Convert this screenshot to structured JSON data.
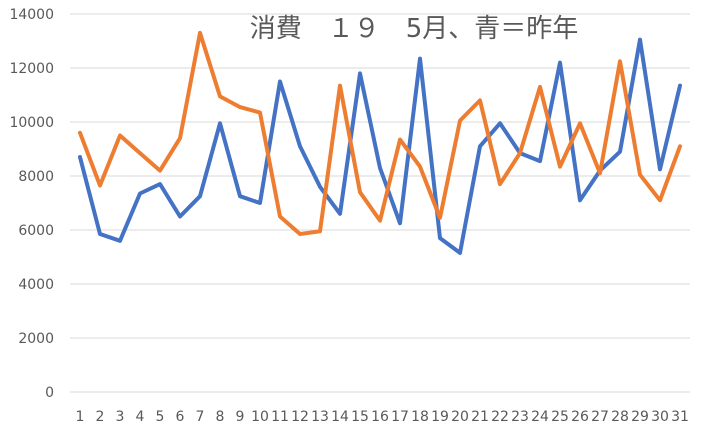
{
  "chart_data": {
    "type": "line",
    "title": "消費　１９　5月、青＝昨年",
    "xlabel": "",
    "ylabel": "",
    "x": [
      "1",
      "2",
      "3",
      "4",
      "5",
      "6",
      "7",
      "8",
      "9",
      "10",
      "11",
      "12",
      "13",
      "14",
      "15",
      "16",
      "17",
      "18",
      "19",
      "20",
      "21",
      "22",
      "23",
      "24",
      "25",
      "26",
      "27",
      "28",
      "29",
      "30",
      "31"
    ],
    "ylim": [
      0,
      14000
    ],
    "yticks": [
      "0",
      "2000",
      "4000",
      "6000",
      "8000",
      "10000",
      "12000",
      "14000"
    ],
    "grid": true,
    "legend": "none",
    "series": [
      {
        "color": "#4472c4",
        "values": [
          8700,
          5850,
          5600,
          7350,
          7700,
          6500,
          7250,
          9950,
          7250,
          7000,
          11500,
          9100,
          7600,
          6600,
          11800,
          8300,
          6250,
          12350,
          5700,
          5150,
          9100,
          9950,
          8850,
          8550,
          12200,
          7100,
          8200,
          8900,
          13050,
          8250,
          11350
        ]
      },
      {
        "color": "#ed7d31",
        "values": [
          9600,
          7650,
          9500,
          8850,
          8200,
          9400,
          13300,
          10950,
          10550,
          10350,
          6500,
          5850,
          5950,
          11350,
          7400,
          6350,
          9350,
          8350,
          6450,
          10050,
          10800,
          7700,
          8850,
          11300,
          8350,
          9950,
          8100,
          12250,
          8050,
          7100,
          9100
        ]
      }
    ]
  }
}
